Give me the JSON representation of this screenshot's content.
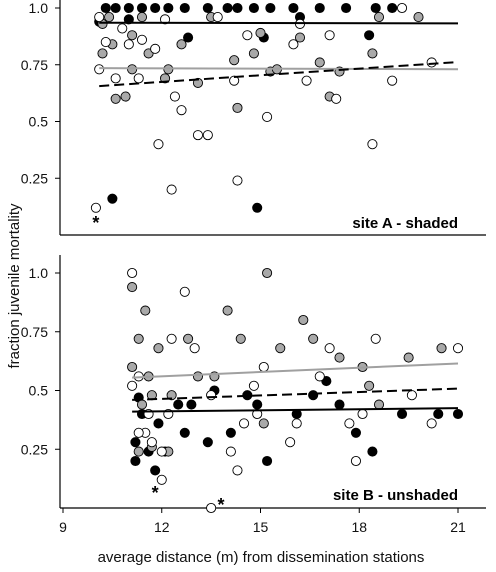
{
  "chart_data": [
    {
      "type": "scatter",
      "panel_label": "site A - shaded",
      "xlim": [
        9,
        22
      ],
      "ylim": [
        0,
        1.0
      ],
      "y_ticks": [
        0.25,
        0.5,
        0.75,
        1.0
      ],
      "y_tick_labels": [
        "0.25",
        "0.5",
        "0.75",
        "1.0"
      ],
      "series": [
        {
          "fill": "black",
          "color": "#000000",
          "points": [
            [
              10.3,
              1.0
            ],
            [
              10.6,
              1.0
            ],
            [
              11.0,
              1.0
            ],
            [
              11.4,
              1.0
            ],
            [
              11.8,
              1.0
            ],
            [
              12.2,
              1.0
            ],
            [
              12.7,
              1.0
            ],
            [
              13.4,
              1.0
            ],
            [
              14.0,
              1.0
            ],
            [
              14.3,
              1.0
            ],
            [
              14.8,
              1.0
            ],
            [
              15.3,
              1.0
            ],
            [
              16.0,
              1.0
            ],
            [
              16.8,
              1.0
            ],
            [
              17.6,
              1.0
            ],
            [
              18.5,
              1.0
            ],
            [
              19.0,
              1.0
            ],
            [
              10.1,
              0.94
            ],
            [
              11.0,
              0.95
            ],
            [
              12.8,
              0.87
            ],
            [
              15.1,
              0.87
            ],
            [
              18.3,
              0.88
            ],
            [
              10.5,
              0.16
            ],
            [
              14.9,
              0.12
            ],
            [
              16.2,
              0.96
            ]
          ]
        },
        {
          "fill": "gray",
          "color": "#a9a9a9",
          "points": [
            [
              10.2,
              0.93
            ],
            [
              10.4,
              0.96
            ],
            [
              11.1,
              0.88
            ],
            [
              11.4,
              0.96
            ],
            [
              10.2,
              0.8
            ],
            [
              10.5,
              0.84
            ],
            [
              11.1,
              0.73
            ],
            [
              11.6,
              0.8
            ],
            [
              12.2,
              0.73
            ],
            [
              12.6,
              0.84
            ],
            [
              12.1,
              0.69
            ],
            [
              10.9,
              0.61
            ],
            [
              10.6,
              0.6
            ],
            [
              13.1,
              0.67
            ],
            [
              13.5,
              0.96
            ],
            [
              14.2,
              0.77
            ],
            [
              14.3,
              0.56
            ],
            [
              14.8,
              0.8
            ],
            [
              15.0,
              0.89
            ],
            [
              15.3,
              0.72
            ],
            [
              16.2,
              0.87
            ],
            [
              16.8,
              0.76
            ],
            [
              17.1,
              0.61
            ],
            [
              17.4,
              0.72
            ],
            [
              18.4,
              0.8
            ],
            [
              18.6,
              0.96
            ],
            [
              19.8,
              0.96
            ],
            [
              15.5,
              0.73
            ]
          ]
        },
        {
          "fill": "white",
          "color": "#ffffff",
          "points": [
            [
              10.1,
              0.96
            ],
            [
              10.3,
              0.85
            ],
            [
              10.8,
              0.91
            ],
            [
              11.0,
              0.84
            ],
            [
              10.1,
              0.73
            ],
            [
              10.6,
              0.69
            ],
            [
              11.4,
              0.86
            ],
            [
              11.8,
              0.82
            ],
            [
              11.3,
              0.69
            ],
            [
              12.1,
              0.95
            ],
            [
              12.4,
              0.61
            ],
            [
              11.9,
              0.4
            ],
            [
              12.6,
              0.55
            ],
            [
              12.3,
              0.2
            ],
            [
              13.1,
              0.44
            ],
            [
              13.4,
              0.44
            ],
            [
              14.3,
              0.24
            ],
            [
              14.2,
              0.68
            ],
            [
              15.2,
              0.52
            ],
            [
              16.2,
              0.93
            ],
            [
              16.4,
              0.68
            ],
            [
              17.1,
              0.88
            ],
            [
              17.3,
              0.6
            ],
            [
              18.4,
              0.4
            ],
            [
              19.0,
              0.68
            ],
            [
              19.3,
              1.0
            ],
            [
              20.2,
              0.76
            ],
            [
              10.0,
              0.12
            ],
            [
              14.6,
              0.88
            ],
            [
              16.0,
              0.84
            ],
            [
              13.7,
              0.96
            ]
          ]
        }
      ],
      "trend_lines": [
        {
          "style": "solid",
          "color": "#000000",
          "x": [
            10.1,
            21
          ],
          "y": [
            0.935,
            0.932
          ]
        },
        {
          "style": "solid",
          "color": "#a0a0a0",
          "x": [
            10.1,
            21
          ],
          "y": [
            0.735,
            0.73
          ]
        },
        {
          "style": "dashed",
          "color": "#000000",
          "x": [
            10.1,
            21
          ],
          "y": [
            0.656,
            0.762
          ]
        }
      ],
      "annotations": [
        {
          "text": "*",
          "x": 10.0,
          "y": 0.07
        }
      ]
    },
    {
      "type": "scatter",
      "panel_label": "site B - unshaded",
      "xlim": [
        9,
        22
      ],
      "ylim": [
        0,
        1.1
      ],
      "x_ticks": [
        9,
        12,
        15,
        18,
        21
      ],
      "x_tick_labels": [
        "9",
        "12",
        "15",
        "18",
        "21"
      ],
      "y_ticks": [
        0.25,
        0.5,
        0.75,
        1.0
      ],
      "y_tick_labels": [
        "0.25",
        "0.5",
        "0.75",
        "1.0"
      ],
      "series": [
        {
          "fill": "black",
          "color": "#000000",
          "points": [
            [
              11.2,
              0.28
            ],
            [
              11.4,
              0.4
            ],
            [
              11.6,
              0.24
            ],
            [
              11.2,
              0.2
            ],
            [
              11.8,
              0.16
            ],
            [
              12.1,
              0.24
            ],
            [
              12.5,
              0.44
            ],
            [
              12.9,
              0.44
            ],
            [
              13.4,
              0.28
            ],
            [
              13.6,
              0.5
            ],
            [
              14.1,
              0.32
            ],
            [
              14.6,
              0.48
            ],
            [
              14.9,
              0.44
            ],
            [
              15.2,
              0.2
            ],
            [
              16.1,
              0.4
            ],
            [
              16.6,
              0.48
            ],
            [
              17.0,
              0.54
            ],
            [
              17.9,
              0.32
            ],
            [
              18.4,
              0.24
            ],
            [
              19.3,
              0.4
            ],
            [
              20.4,
              0.4
            ],
            [
              21.0,
              0.4
            ],
            [
              17.4,
              0.44
            ],
            [
              11.3,
              0.47
            ],
            [
              12.7,
              0.32
            ],
            [
              11.9,
              0.36
            ]
          ]
        },
        {
          "fill": "gray",
          "color": "#a9a9a9",
          "points": [
            [
              11.1,
              0.94
            ],
            [
              11.3,
              0.72
            ],
            [
              11.5,
              0.84
            ],
            [
              11.1,
              0.6
            ],
            [
              11.6,
              0.56
            ],
            [
              11.9,
              0.68
            ],
            [
              11.4,
              0.44
            ],
            [
              11.7,
              0.48
            ],
            [
              12.3,
              0.48
            ],
            [
              12.8,
              0.72
            ],
            [
              13.1,
              0.56
            ],
            [
              13.6,
              0.56
            ],
            [
              11.3,
              0.24
            ],
            [
              12.2,
              0.24
            ],
            [
              14.0,
              0.84
            ],
            [
              14.4,
              0.72
            ],
            [
              15.2,
              1.0
            ],
            [
              15.6,
              0.68
            ],
            [
              16.3,
              0.8
            ],
            [
              16.6,
              0.72
            ],
            [
              17.4,
              0.64
            ],
            [
              18.3,
              0.52
            ],
            [
              18.6,
              0.44
            ],
            [
              19.5,
              0.64
            ],
            [
              20.5,
              0.68
            ],
            [
              18.1,
              0.6
            ],
            [
              15.1,
              0.36
            ],
            [
              11.7,
              0.26
            ]
          ]
        },
        {
          "fill": "white",
          "color": "#ffffff",
          "points": [
            [
              11.1,
              1.0
            ],
            [
              11.3,
              0.56
            ],
            [
              11.1,
              0.52
            ],
            [
              11.6,
              0.4
            ],
            [
              11.5,
              0.32
            ],
            [
              11.7,
              0.28
            ],
            [
              12.0,
              0.12
            ],
            [
              12.0,
              0.24
            ],
            [
              12.3,
              0.72
            ],
            [
              12.7,
              0.92
            ],
            [
              12.2,
              0.4
            ],
            [
              13.0,
              0.68
            ],
            [
              13.5,
              0.48
            ],
            [
              13.5,
              0.0
            ],
            [
              14.1,
              0.24
            ],
            [
              14.3,
              0.16
            ],
            [
              14.5,
              0.36
            ],
            [
              14.9,
              0.4
            ],
            [
              15.1,
              0.6
            ],
            [
              15.9,
              0.28
            ],
            [
              16.1,
              0.36
            ],
            [
              16.8,
              0.56
            ],
            [
              17.1,
              0.68
            ],
            [
              17.7,
              0.36
            ],
            [
              17.9,
              0.2
            ],
            [
              18.1,
              0.4
            ],
            [
              18.5,
              0.72
            ],
            [
              19.6,
              0.48
            ],
            [
              20.2,
              0.36
            ],
            [
              21.0,
              0.68
            ],
            [
              11.3,
              0.32
            ],
            [
              14.8,
              0.52
            ]
          ]
        }
      ],
      "trend_lines": [
        {
          "style": "solid",
          "color": "#a0a0a0",
          "x": [
            11.1,
            21
          ],
          "y": [
            0.555,
            0.615
          ]
        },
        {
          "style": "dashed",
          "color": "#000000",
          "x": [
            11.1,
            21
          ],
          "y": [
            0.46,
            0.508
          ]
        },
        {
          "style": "solid",
          "color": "#000000",
          "x": [
            11.1,
            21
          ],
          "y": [
            0.41,
            0.425
          ]
        }
      ],
      "annotations": [
        {
          "text": "*",
          "x": 11.8,
          "y": 0.08
        },
        {
          "text": "*",
          "x": 13.8,
          "y": 0.03
        }
      ]
    }
  ],
  "labels": {
    "ylabel": "fraction juvenile mortality",
    "xlabel": "average  distance (m) from dissemination stations"
  }
}
